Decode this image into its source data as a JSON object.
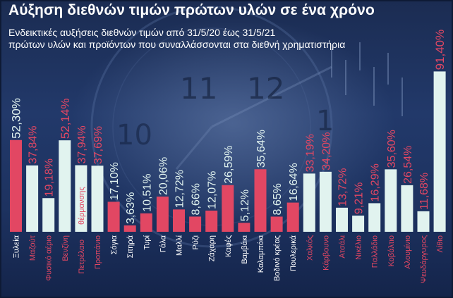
{
  "title": "Αύξηση διεθνών τιμών πρώτων υλών σε ένα χρόνο",
  "subtitle_lines": [
    "Ενδεικτικές αυξήσεις διεθνών τιμών από 31/5/20 έως 31/5/21",
    "πρώτων υλών και προϊόντων που συναλλάσσονται στα διεθνή χρηματιστήρια"
  ],
  "colors": {
    "background": "#1d3260",
    "bar_pink": "#e24763",
    "bar_mint": "#e1f3ef",
    "text_white": "#ffffff"
  },
  "chart_data": {
    "type": "bar",
    "title": "Αύξηση διεθνών τιμών πρώτων υλών σε ένα χρόνο",
    "subtitle": "Ενδεικτικές αυξήσεις διεθνών τιμών από 31/5/20 έως 31/5/21 πρώτων υλών και προϊόντων που συναλλάσσονται στα διεθνή χρηματιστήρια",
    "xlabel": "",
    "ylabel": "",
    "ylim": [
      0,
      100
    ],
    "grid": false,
    "legend": "none",
    "bars": [
      {
        "category": "Ξυλεία",
        "value": 52.3,
        "label": "52,30%",
        "color": "pink"
      },
      {
        "category": "Μαζούτ",
        "value": 37.84,
        "label": "37,84%",
        "color": "mint"
      },
      {
        "category": "Φυσικό αέριο",
        "value": 19.18,
        "label": "19,18%",
        "color": "mint"
      },
      {
        "category": "Βενζίνη",
        "value": 52.14,
        "label": "52,14%",
        "color": "mint"
      },
      {
        "category": "Πετρέλαιο θέρμανσης",
        "value": 37.94,
        "label": "37,94%",
        "color": "mint"
      },
      {
        "category": "Προπάνιο",
        "value": 37.69,
        "label": "37,69%",
        "color": "mint"
      },
      {
        "category": "Σόγια",
        "value": 17.1,
        "label": "17,10%",
        "color": "pink"
      },
      {
        "category": "Σιτηρά",
        "value": 3.63,
        "label": "3,63%",
        "color": "pink"
      },
      {
        "category": "Τυρί",
        "value": 10.51,
        "label": "10,51%",
        "color": "pink"
      },
      {
        "category": "Γάλα",
        "value": 20.06,
        "label": "20,06%",
        "color": "pink"
      },
      {
        "category": "Μαλλί",
        "value": 12.72,
        "label": "12,72%",
        "color": "pink"
      },
      {
        "category": "Ρύζι",
        "value": 8.66,
        "label": "8,66%",
        "color": "pink"
      },
      {
        "category": "Ζάχαρη",
        "value": 12.07,
        "label": "12,07%",
        "color": "pink"
      },
      {
        "category": "Καφές",
        "value": 26.59,
        "label": "26,59%",
        "color": "pink"
      },
      {
        "category": "Βαμβάκι",
        "value": 5.12,
        "label": "5,12%",
        "color": "pink"
      },
      {
        "category": "Καλαμπόκι",
        "value": 35.64,
        "label": "35,64%",
        "color": "pink"
      },
      {
        "category": "Βοδινό κρέας",
        "value": 8.65,
        "label": "8,65%",
        "color": "pink"
      },
      {
        "category": "Πουλερικά",
        "value": 16.64,
        "label": "16,64%",
        "color": "pink"
      },
      {
        "category": "Χαλκός",
        "value": 33.19,
        "label": "33,19%",
        "color": "mint"
      },
      {
        "category": "Κάρβουνο",
        "value": 34.2,
        "label": "34,20%",
        "color": "mint"
      },
      {
        "category": "Ατσάλι",
        "value": 13.72,
        "label": "13,72%",
        "color": "mint"
      },
      {
        "category": "Νικέλιο",
        "value": 9.21,
        "label": "9,21%",
        "color": "mint"
      },
      {
        "category": "Παλλάδιο",
        "value": 16.29,
        "label": "16,29%",
        "color": "mint"
      },
      {
        "category": "Κοβάλτιο",
        "value": 35.6,
        "label": "35,60%",
        "color": "mint"
      },
      {
        "category": "Αλουμίνιο",
        "value": 26.54,
        "label": "26,54%",
        "color": "mint"
      },
      {
        "category": "Ψευδάργυρος",
        "value": 11.68,
        "label": "11,68%",
        "color": "mint"
      },
      {
        "category": "Λίθιο",
        "value": 91.4,
        "label": "91,40%",
        "color": "mint"
      }
    ]
  }
}
